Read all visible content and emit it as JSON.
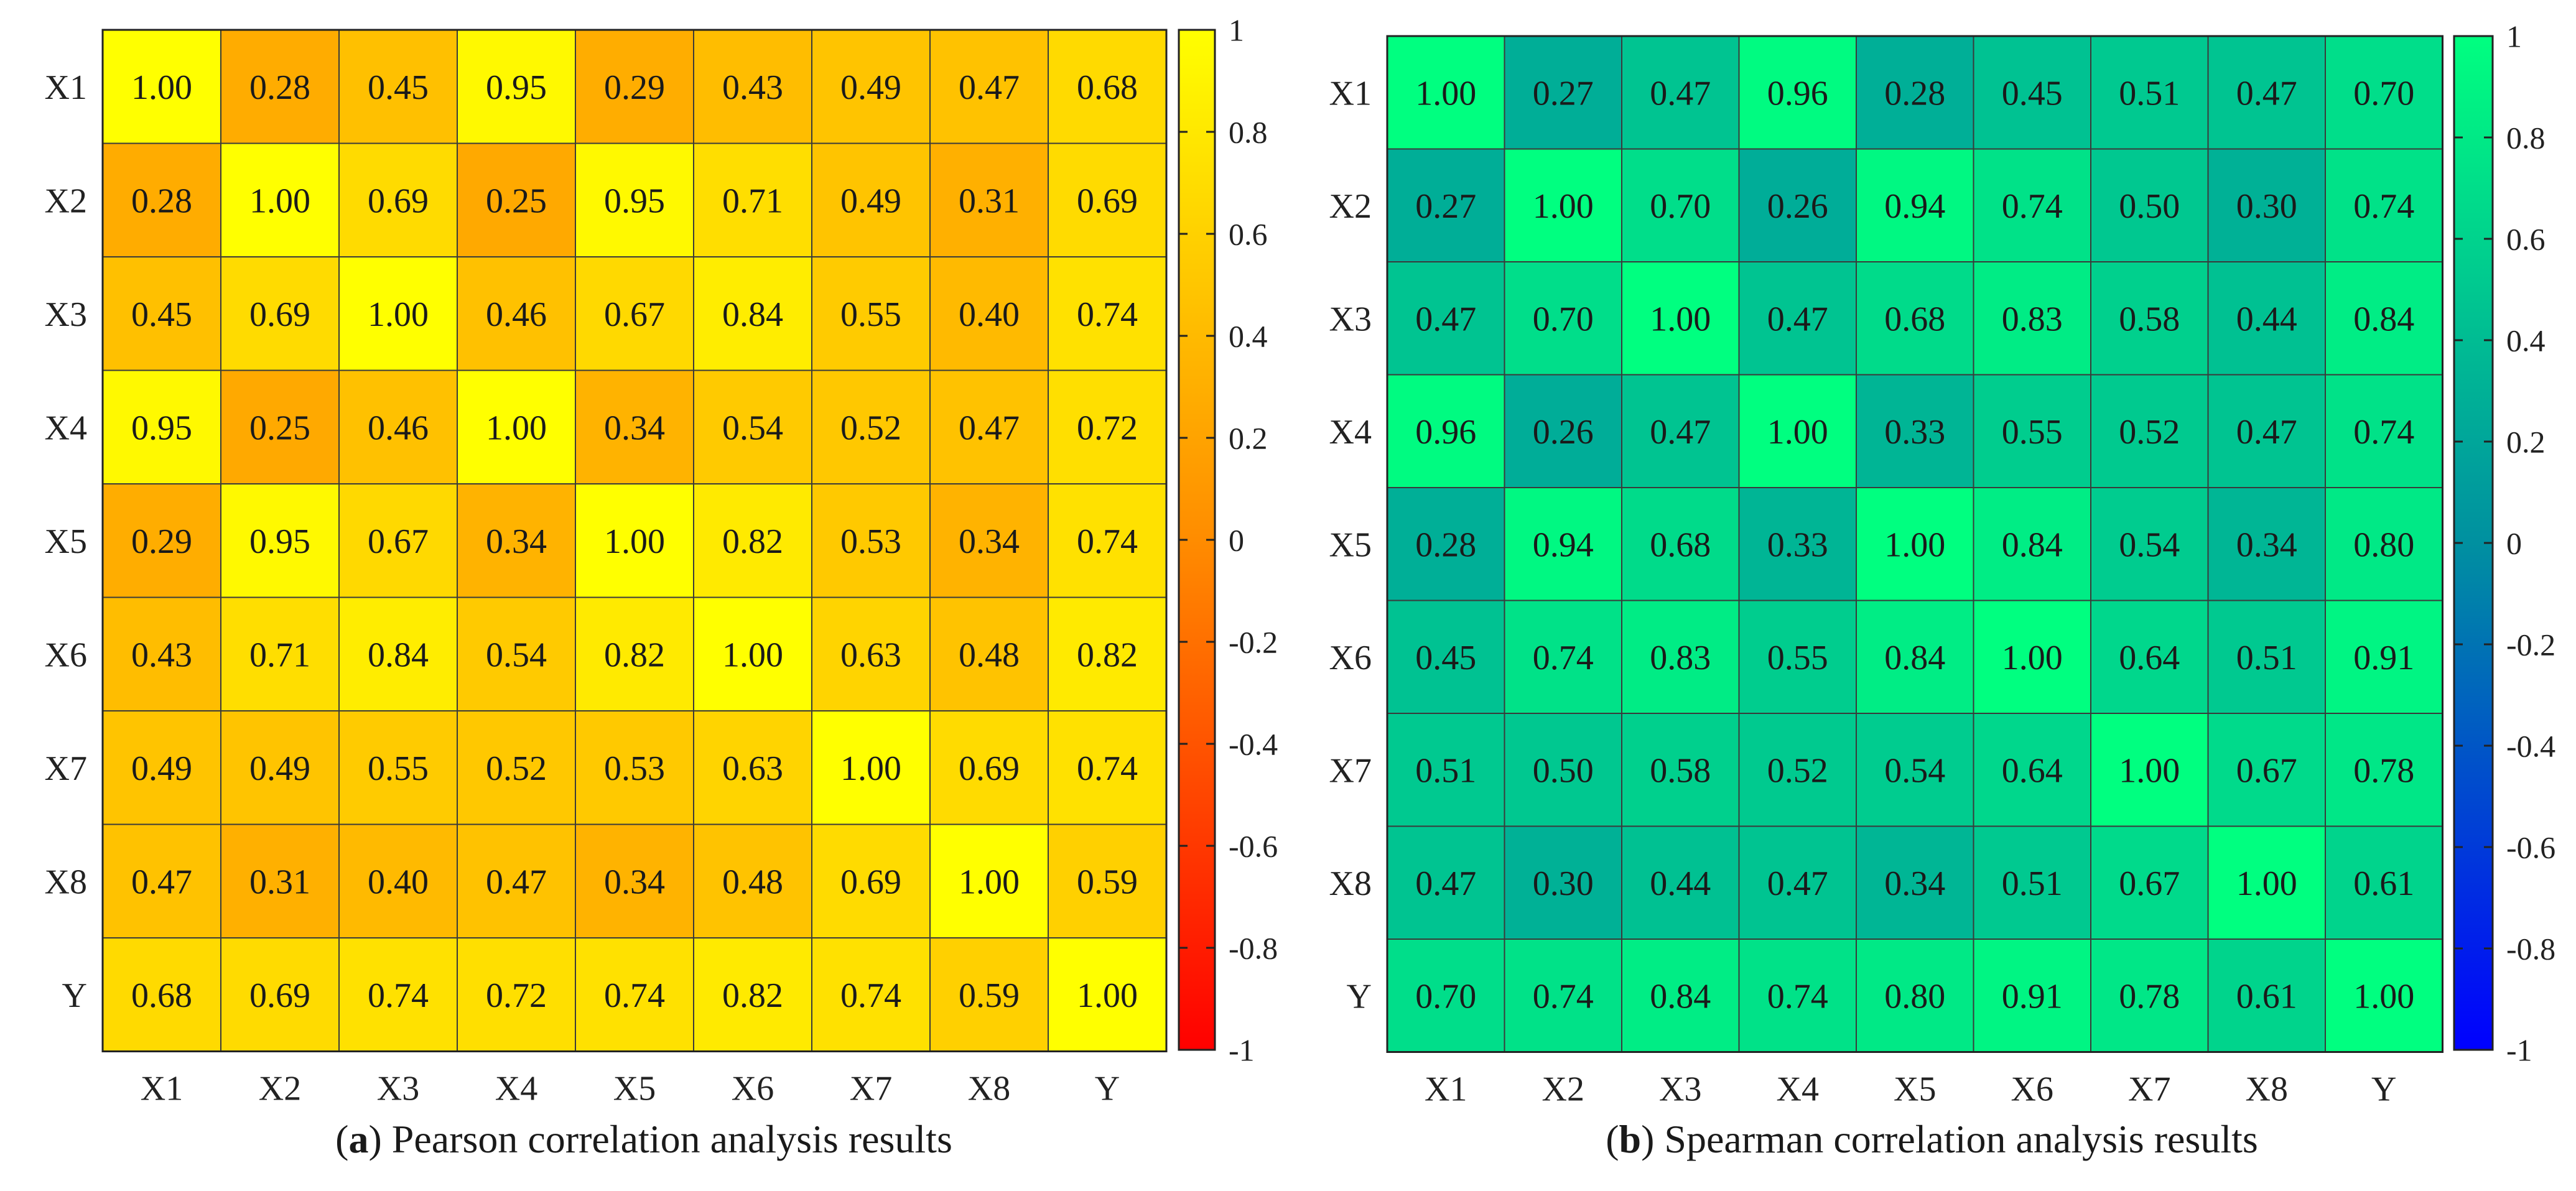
{
  "chart_data": [
    {
      "type": "heatmap",
      "caption_letter": "a",
      "caption_text": "Pearson correlation analysis results",
      "row_labels": [
        "X1",
        "X2",
        "X3",
        "X4",
        "X5",
        "X6",
        "X7",
        "X8",
        "Y"
      ],
      "col_labels": [
        "X1",
        "X2",
        "X3",
        "X4",
        "X5",
        "X6",
        "X7",
        "X8",
        "Y"
      ],
      "values": [
        [
          1.0,
          0.28,
          0.45,
          0.95,
          0.29,
          0.43,
          0.49,
          0.47,
          0.68
        ],
        [
          0.28,
          1.0,
          0.69,
          0.25,
          0.95,
          0.71,
          0.49,
          0.31,
          0.69
        ],
        [
          0.45,
          0.69,
          1.0,
          0.46,
          0.67,
          0.84,
          0.55,
          0.4,
          0.74
        ],
        [
          0.95,
          0.25,
          0.46,
          1.0,
          0.34,
          0.54,
          0.52,
          0.47,
          0.72
        ],
        [
          0.29,
          0.95,
          0.67,
          0.34,
          1.0,
          0.82,
          0.53,
          0.34,
          0.74
        ],
        [
          0.43,
          0.71,
          0.84,
          0.54,
          0.82,
          1.0,
          0.63,
          0.48,
          0.82
        ],
        [
          0.49,
          0.49,
          0.55,
          0.52,
          0.53,
          0.63,
          1.0,
          0.69,
          0.74
        ],
        [
          0.47,
          0.31,
          0.4,
          0.47,
          0.34,
          0.48,
          0.69,
          1.0,
          0.59
        ],
        [
          0.68,
          0.69,
          0.74,
          0.72,
          0.74,
          0.82,
          0.74,
          0.59,
          1.0
        ]
      ],
      "value_range": [
        -1,
        1
      ],
      "colorbar_ticks": [
        "1",
        "0.8",
        "0.6",
        "0.4",
        "0.2",
        "0",
        "-0.2",
        "-0.4",
        "-0.6",
        "-0.8",
        "-1"
      ],
      "colormap": [
        "#ff0000",
        "#ff8c00",
        "#ffff00"
      ]
    },
    {
      "type": "heatmap",
      "caption_letter": "b",
      "caption_text": "Spearman correlation analysis results",
      "row_labels": [
        "X1",
        "X2",
        "X3",
        "X4",
        "X5",
        "X6",
        "X7",
        "X8",
        "Y"
      ],
      "col_labels": [
        "X1",
        "X2",
        "X3",
        "X4",
        "X5",
        "X6",
        "X7",
        "X8",
        "Y"
      ],
      "values": [
        [
          1.0,
          0.27,
          0.47,
          0.96,
          0.28,
          0.45,
          0.51,
          0.47,
          0.7
        ],
        [
          0.27,
          1.0,
          0.7,
          0.26,
          0.94,
          0.74,
          0.5,
          0.3,
          0.74
        ],
        [
          0.47,
          0.7,
          1.0,
          0.47,
          0.68,
          0.83,
          0.58,
          0.44,
          0.84
        ],
        [
          0.96,
          0.26,
          0.47,
          1.0,
          0.33,
          0.55,
          0.52,
          0.47,
          0.74
        ],
        [
          0.28,
          0.94,
          0.68,
          0.33,
          1.0,
          0.84,
          0.54,
          0.34,
          0.8
        ],
        [
          0.45,
          0.74,
          0.83,
          0.55,
          0.84,
          1.0,
          0.64,
          0.51,
          0.91
        ],
        [
          0.51,
          0.5,
          0.58,
          0.52,
          0.54,
          0.64,
          1.0,
          0.67,
          0.78
        ],
        [
          0.47,
          0.3,
          0.44,
          0.47,
          0.34,
          0.51,
          0.67,
          1.0,
          0.61
        ],
        [
          0.7,
          0.74,
          0.84,
          0.74,
          0.8,
          0.91,
          0.78,
          0.61,
          1.0
        ]
      ],
      "value_range": [
        -1,
        1
      ],
      "colorbar_ticks": [
        "1",
        "0.8",
        "0.6",
        "0.4",
        "0.2",
        "0",
        "-0.2",
        "-0.4",
        "-0.6",
        "-0.8",
        "-1"
      ],
      "colormap": [
        "#0000ff",
        "#0090a0",
        "#00ff80"
      ]
    }
  ]
}
